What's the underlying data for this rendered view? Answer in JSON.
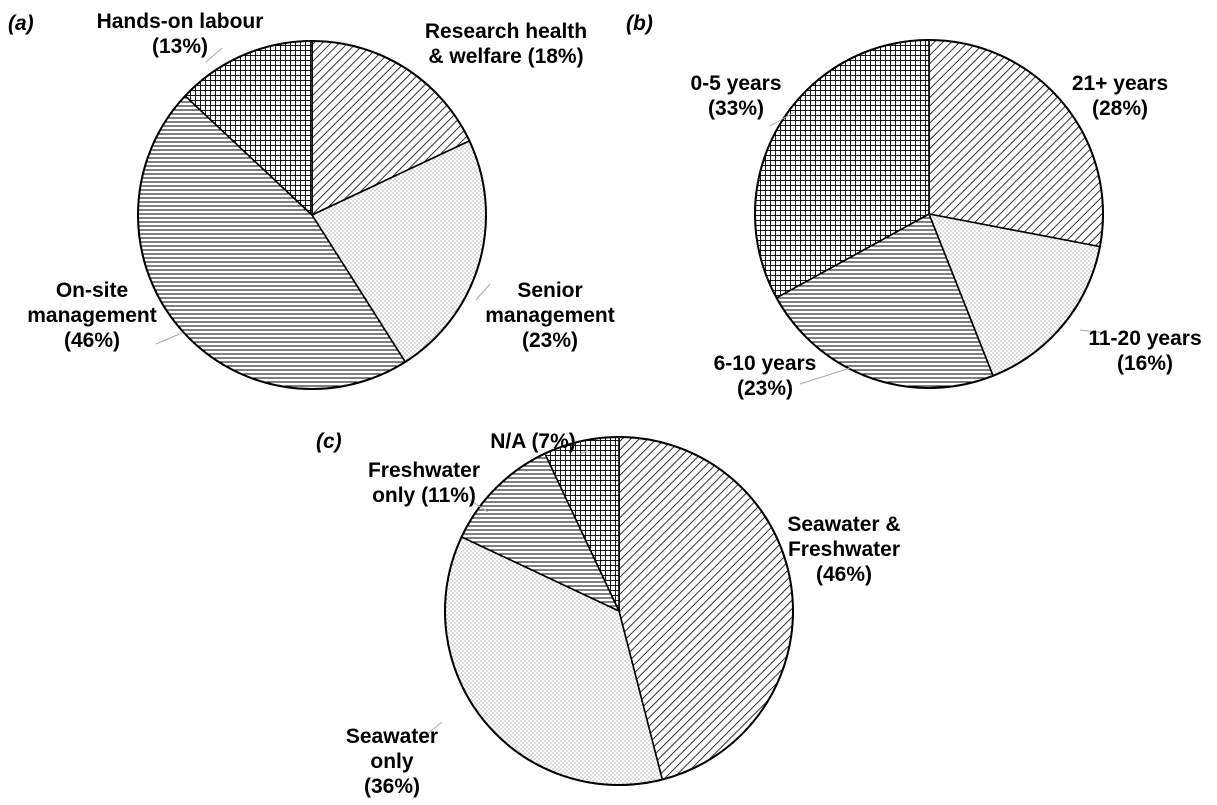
{
  "chart_data": [
    {
      "type": "pie",
      "panel": "(a)",
      "categories": [
        "Research health & welfare",
        "Senior management",
        "On-site management",
        "Hands-on labour"
      ],
      "values": [
        18,
        23,
        46,
        13
      ],
      "labels": [
        [
          "Research health",
          "& welfare (18%)"
        ],
        [
          "Senior",
          "management",
          "(23%)"
        ],
        [
          "On-site",
          "management",
          "(46%)"
        ],
        [
          "Hands-on labour",
          "(13%)"
        ]
      ],
      "patterns": [
        "diagonal",
        "dots",
        "horizontal",
        "grid"
      ]
    },
    {
      "type": "pie",
      "panel": "(b)",
      "categories": [
        "21+ years",
        "11-20 years",
        "6-10 years",
        "0-5 years"
      ],
      "values": [
        28,
        16,
        23,
        33
      ],
      "labels": [
        [
          "21+ years",
          "(28%)"
        ],
        [
          "11-20 years",
          "(16%)"
        ],
        [
          "6-10 years",
          "(23%)"
        ],
        [
          "0-5 years",
          "(33%)"
        ]
      ],
      "patterns": [
        "diagonal",
        "dots",
        "horizontal",
        "grid"
      ]
    },
    {
      "type": "pie",
      "panel": "(c)",
      "categories": [
        "Seawater & Freshwater",
        "Seawater only",
        "Freshwater only",
        "N/A"
      ],
      "values": [
        46,
        36,
        11,
        7
      ],
      "labels": [
        [
          "Seawater &",
          "Freshwater",
          "(46%)"
        ],
        [
          "Seawater",
          "only",
          "(36%)"
        ],
        [
          "Freshwater",
          "only (11%)"
        ],
        [
          "N/A (7%)"
        ]
      ],
      "patterns": [
        "diagonal",
        "dots",
        "horizontal",
        "grid"
      ]
    }
  ]
}
